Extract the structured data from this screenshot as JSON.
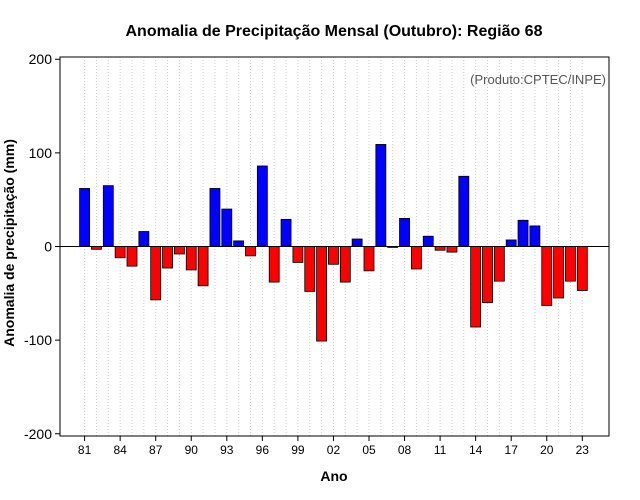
{
  "chart_data": {
    "type": "bar",
    "title": "Anomalia de Precipitação Mensal (Outubro): Região 68",
    "xlabel": "Ano",
    "ylabel": "Anomalia de precipitação (mm)",
    "annotation": "(Produto:CPTEC/INPE)",
    "ylim": [
      -200,
      200
    ],
    "yticks": [
      -200,
      -100,
      0,
      100,
      200
    ],
    "xtick_labels": [
      "81",
      "84",
      "87",
      "90",
      "93",
      "96",
      "99",
      "02",
      "05",
      "08",
      "11",
      "14",
      "17",
      "20",
      "23"
    ],
    "xtick_years": [
      1981,
      1984,
      1987,
      1990,
      1993,
      1996,
      1999,
      2002,
      2005,
      2008,
      2011,
      2014,
      2017,
      2020,
      2023
    ],
    "grid": "vertical dotted",
    "colors": {
      "positive": "#0000ff",
      "negative": "#ff0000",
      "grid": "#cccccc"
    },
    "years": [
      1981,
      1982,
      1983,
      1984,
      1985,
      1986,
      1987,
      1988,
      1989,
      1990,
      1991,
      1992,
      1993,
      1994,
      1995,
      1996,
      1997,
      1998,
      1999,
      2000,
      2001,
      2002,
      2003,
      2004,
      2005,
      2006,
      2007,
      2008,
      2009,
      2010,
      2011,
      2012,
      2013,
      2014,
      2015,
      2016,
      2017,
      2018,
      2019,
      2020,
      2021,
      2022,
      2023
    ],
    "values": [
      62,
      -3,
      65,
      -12,
      -21,
      16,
      -57,
      -23,
      -8,
      -25,
      -42,
      62,
      40,
      6,
      -10,
      86,
      -38,
      29,
      -17,
      -48,
      -101,
      -19,
      -38,
      8,
      -26,
      109,
      -1,
      30,
      -24,
      11,
      -4,
      -6,
      75,
      -86,
      -60,
      -37,
      7,
      28,
      22,
      -63,
      -55,
      -37,
      -47
    ]
  }
}
